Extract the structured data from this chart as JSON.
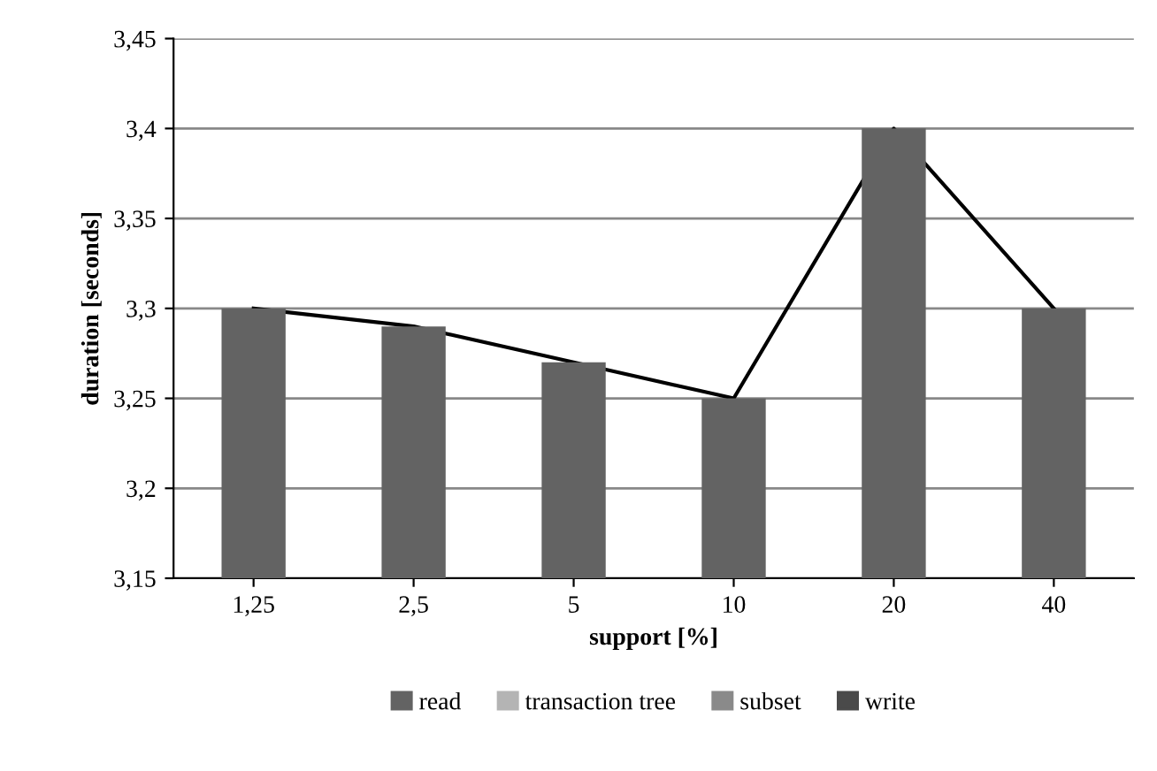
{
  "chart_data": {
    "type": "bar",
    "xlabel": "support [%]",
    "ylabel": "duration [seconds]",
    "categories": [
      "1,25",
      "2,5",
      "5",
      "10",
      "20",
      "40"
    ],
    "series": [
      {
        "name": "read",
        "color": "#636363",
        "values": [
          3.3,
          3.29,
          3.27,
          3.25,
          3.4,
          3.3
        ]
      },
      {
        "name": "transaction tree",
        "color": "#b4b4b4",
        "values": [
          null,
          null,
          null,
          null,
          null,
          null
        ]
      },
      {
        "name": "subset",
        "color": "#8a8a8a",
        "values": [
          null,
          null,
          null,
          null,
          null,
          null
        ]
      },
      {
        "name": "write",
        "color": "#4a4a4a",
        "values": [
          null,
          null,
          null,
          null,
          null,
          null
        ]
      },
      {
        "type": "line",
        "color": "#000000",
        "values": [
          3.3,
          3.29,
          3.27,
          3.25,
          3.4,
          3.3
        ]
      }
    ],
    "ylim": [
      3.15,
      3.45
    ],
    "yticks": [
      {
        "value": 3.15,
        "label": "3,15"
      },
      {
        "value": 3.2,
        "label": "3,2"
      },
      {
        "value": 3.25,
        "label": "3,25"
      },
      {
        "value": 3.3,
        "label": "3,3"
      },
      {
        "value": 3.35,
        "label": "3,35"
      },
      {
        "value": 3.4,
        "label": "3,4"
      },
      {
        "value": 3.45,
        "label": "3,45"
      }
    ],
    "grid": "y",
    "legend": "bottom"
  }
}
